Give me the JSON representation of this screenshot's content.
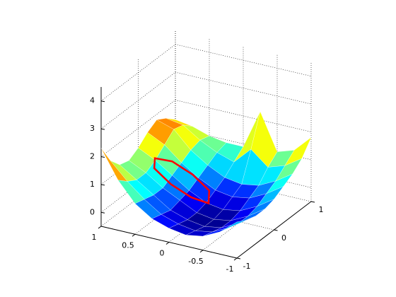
{
  "chart_data": {
    "type": "mesh3d",
    "x": [
      -1,
      -0.75,
      -0.5,
      -0.25,
      0,
      0.25,
      0.5,
      0.75,
      1
    ],
    "y": [
      -1,
      -0.75,
      -0.5,
      -0.25,
      0,
      0.25,
      0.5,
      0.75,
      1
    ],
    "z": [
      [
        0.8,
        0.3,
        0.0,
        -0.1,
        0.0,
        0.2,
        0.6,
        1.3,
        2.3
      ],
      [
        0.6,
        0.2,
        -0.1,
        -0.2,
        -0.1,
        0.1,
        0.5,
        1.0,
        1.6
      ],
      [
        0.5,
        0.1,
        -0.2,
        -0.3,
        -0.2,
        0.0,
        0.4,
        0.8,
        1.2
      ],
      [
        0.5,
        0.1,
        -0.2,
        -0.3,
        -0.2,
        0.1,
        0.4,
        0.8,
        1.1
      ],
      [
        0.6,
        0.2,
        -0.1,
        -0.2,
        -0.1,
        0.2,
        0.6,
        1.0,
        1.3
      ],
      [
        0.8,
        0.4,
        0.1,
        0.0,
        0.1,
        0.4,
        0.8,
        1.3,
        1.6
      ],
      [
        1.0,
        0.6,
        0.3,
        0.2,
        0.3,
        0.6,
        1.0,
        1.6,
        1.8
      ],
      [
        1.3,
        0.9,
        0.7,
        1.2,
        0.6,
        0.8,
        1.1,
        1.5,
        1.6
      ],
      [
        1.8,
        1.2,
        1.0,
        2.3,
        0.9,
        0.9,
        1.0,
        1.2,
        1.3
      ]
    ],
    "colormap": "jet",
    "xlim": [
      -1,
      1
    ],
    "ylim": [
      -1,
      1
    ],
    "zlim": [
      -0.5,
      4.5
    ],
    "xticks": [
      -1,
      -0.5,
      0,
      0.5,
      1
    ],
    "yticks": [
      -1,
      0,
      1
    ],
    "zticks": [
      0,
      1,
      2,
      3,
      4
    ],
    "grid": true,
    "curve": {
      "color": "#ff0000",
      "x": [
        0.7,
        0.5,
        0.2,
        -0.1,
        -0.2,
        0.0,
        0.3,
        0.6
      ],
      "y": [
        -0.1,
        0.0,
        0.0,
        -0.1,
        -0.3,
        -0.4,
        -0.4,
        -0.3
      ],
      "z": [
        1.2,
        1.1,
        0.8,
        0.5,
        0.3,
        0.5,
        0.8,
        1.1
      ]
    }
  }
}
